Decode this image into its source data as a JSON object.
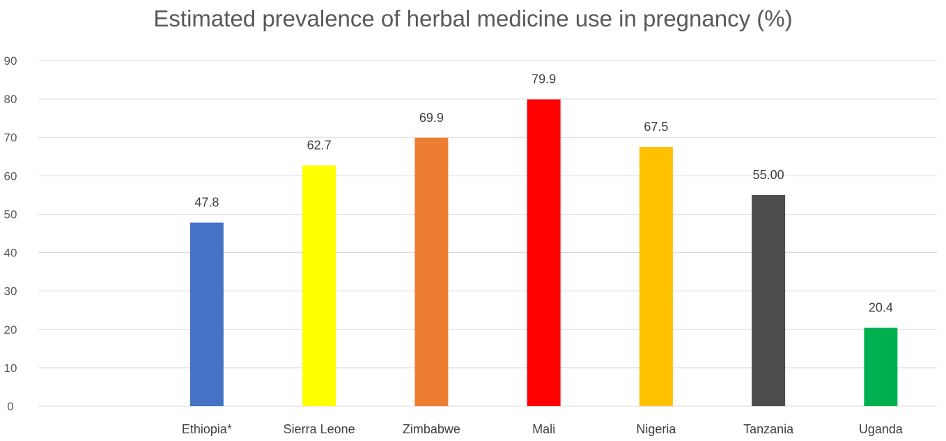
{
  "chart_data": {
    "type": "bar",
    "title": "Estimated prevalence of herbal medicine use in pregnancy (%)",
    "xlabel": "",
    "ylabel": "",
    "ylim": [
      0,
      90
    ],
    "yticks": [
      0,
      10,
      20,
      30,
      40,
      50,
      60,
      70,
      80,
      90
    ],
    "grid": true,
    "legend": "none",
    "categories": [
      "",
      "Ethiopia*",
      "Sierra Leone",
      "Zimbabwe",
      "Mali",
      "Nigeria",
      "Tanzania",
      "Uganda"
    ],
    "values": [
      null,
      47.8,
      62.7,
      69.9,
      79.9,
      67.5,
      55.0,
      20.4
    ],
    "data_labels": [
      "",
      "47.8",
      "62.7",
      "69.9",
      "79.9",
      "67.5",
      "55.00",
      "20.4"
    ],
    "colors": [
      "#ffffff",
      "#4472c4",
      "#ffff00",
      "#ed7d31",
      "#ff0000",
      "#ffc000",
      "#4d4d4d",
      "#00b050"
    ]
  }
}
